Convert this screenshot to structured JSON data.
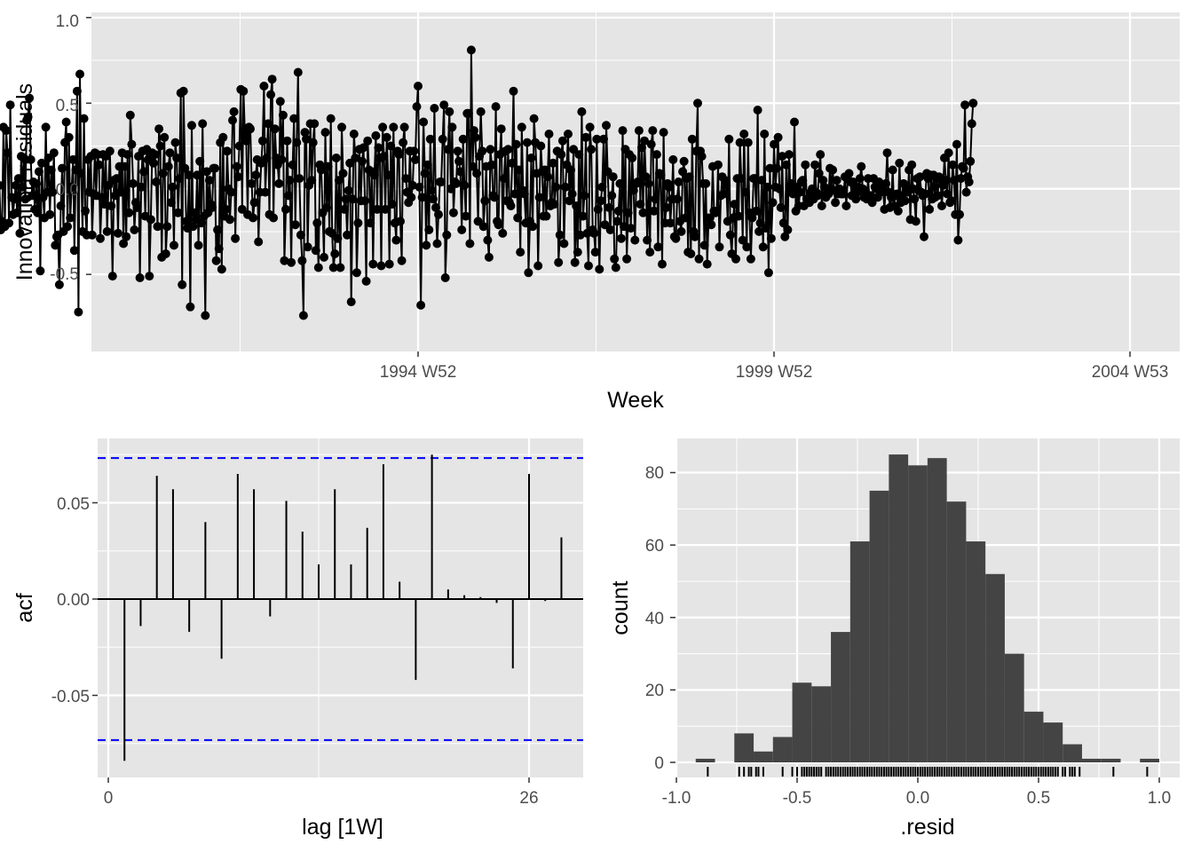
{
  "colors": {
    "panel_bg": "#e5e5e5",
    "grid": "#ffffff",
    "line": "#000000",
    "bar": "#444444",
    "ci": "#0000ff",
    "tick_text": "#4d4d4d"
  },
  "chart_data": [
    {
      "type": "line",
      "xlabel": "Week",
      "ylabel": "Innovation residuals",
      "x_start_week": "1991 W07",
      "x_end_week": "2004 W53",
      "x_ticks": [
        "1994 W52",
        "1999 W52",
        "2004 W53"
      ],
      "y_ticks": [
        "-0.5",
        "0.0",
        "0.5",
        "1.0"
      ],
      "ylim": [
        -0.95,
        1.03
      ],
      "markers": "points",
      "n_points": 673,
      "values": [
        0.02,
        -0.24,
        -0.19,
        0.36,
        -0.22,
        0.34,
        0.21,
        -0.2,
        0.49,
        -0.05,
        -0.15,
        -0.06,
        0.02,
        -0.14,
        0.06,
        -0.26,
        0.19,
        0.01,
        0.18,
        -0.06,
        0.4,
        0.42,
        0.53,
        0.17,
        -0.04,
        0.04,
        -0.12,
        0.03,
        -0.14,
        0.1,
        -0.48,
        0.15,
        -0.05,
        -0.17,
        0.36,
        -0.02,
        0.18,
        -0.15,
        0.11,
        -0.02,
        0.21,
        -0.33,
        -0.28,
        -0.27,
        -0.56,
        -0.1,
        0.12,
        -0.25,
        0.27,
        0.39,
        -0.22,
        0.3,
        -0.17,
        0.01,
        0.17,
        -0.36,
        0.11,
        0.57,
        -0.72,
        0.67,
        0.09,
        -0.25,
        0.41,
        -0.13,
        -0.27,
        0.17,
        -0.02,
        0.19,
        -0.27,
        -0.03,
        0.21,
        -0.04,
        0.2,
        0.14,
        -0.29,
        -0.05,
        0.2,
        -0.09,
        0.19,
        -0.25,
        0.02,
        0.22,
        -0.1,
        -0.51,
        0.05,
        -0.04,
        0.06,
        -0.26,
        0.13,
        -0.02,
        0.21,
        -0.32,
        0.13,
        -0.28,
        0.2,
        -0.14,
        0.43,
        0.26,
        0.03,
        -0.24,
        -0.08,
        -0.11,
        0.19,
        -0.52,
        0.01,
        0.22,
        0.1,
        -0.16,
        0.23,
        0.17,
        -0.51,
        -0.18,
        0.21,
        0.15,
        0.2,
        0.04,
        -0.22,
        0.35,
        0.25,
        -0.4,
        0.09,
        0.3,
        -0.38,
        -0.22,
        0.13,
        0.21,
        -0.08,
        0.01,
        -0.33,
        0.27,
        0.18,
        -0.14,
        0.06,
        0.56,
        -0.56,
        0.57,
        0.12,
        -0.19,
        -0.23,
        0.08,
        -0.69,
        0.37,
        -0.22,
        -0.14,
        -0.18,
        0.08,
        -0.33,
        0.16,
        -0.2,
        0.38,
        -0.16,
        -0.74,
        0.1,
        -0.14,
        0.05,
        -0.09,
        -0.11,
        0.12,
        0.12,
        -0.42,
        -0.24,
        -0.35,
        0.27,
        -0.47,
        0.3,
        -0.16,
        -0.12,
        0.22,
        0.0,
        -0.18,
        -0.02,
        0.4,
        0.45,
        -0.29,
        0.13,
        0.07,
        0.25,
        0.58,
        -0.12,
        0.57,
        0.32,
        0.28,
        -0.15,
        0.36,
        0.35,
        0.03,
        -0.17,
        -0.08,
        0.08,
        0.17,
        -0.31,
        -0.02,
        0.15,
        0.28,
        0.6,
        -0.02,
        0.18,
        0.38,
        -0.15,
        0.55,
        0.64,
        -0.17,
        0.35,
        0.18,
        0.14,
        0.03,
        0.51,
        0.17,
        0.43,
        -0.42,
        -0.12,
        0.28,
        -0.04,
        0.05,
        -0.43,
        0.14,
        0.41,
        -0.21,
        0.27,
        0.68,
        0.06,
        -0.27,
        -0.42,
        -0.74,
        0.33,
        0.29,
        -0.34,
        0.02,
        0.38,
        0.05,
        0.27,
        0.38,
        -0.36,
        -0.2,
        -0.46,
        0.14,
        0.11,
        -0.14,
        -0.4,
        0.33,
        -0.11,
        0.13,
        -0.25,
        0.41,
        -0.26,
        -0.46,
        -0.38,
        0.18,
        -0.29,
        0.05,
        -0.46,
        0.36,
        0.09,
        -0.12,
        -0.06,
        -0.27,
        -0.01,
        0.15,
        -0.66,
        -0.06,
        0.32,
        0.18,
        -0.49,
        -0.2,
        0.23,
        -0.07,
        0.16,
        0.24,
        -0.07,
        -0.54,
        0.28,
        0.11,
        -0.2,
        0.1,
        -0.44,
        0.08,
        0.31,
        -0.12,
        0.24,
        0.18,
        -0.45,
        0.36,
        0.19,
        -0.12,
        0.3,
        0.08,
        -0.44,
        0.25,
        -0.09,
        0.36,
        -0.2,
        -0.3,
        0.22,
        0.2,
        -0.19,
        -0.42,
        0.27,
        0.36,
        0.06,
        -0.02,
        -0.08,
        0.22,
        -0.05,
        0.02,
        0.22,
        0.17,
        0.48,
        0.6,
        0.01,
        -0.68,
        -0.05,
        0.39,
        0.09,
        -0.33,
        0.14,
        -0.24,
        0.29,
        -0.01,
        -0.06,
        0.47,
        -0.11,
        -0.32,
        -0.15,
        0.04,
        0.04,
        0.29,
        0.49,
        -0.52,
        -0.27,
        0.23,
        0.45,
        0.0,
        0.36,
        -0.14,
        0.04,
        0.03,
        0.22,
        0.16,
        0.1,
        -0.24,
        0.29,
        0.02,
        -0.16,
        0.44,
        0.44,
        -0.32,
        0.81,
        0.13,
        0.34,
        0.3,
        0.09,
        -0.19,
        0.19,
        0.45,
        0.22,
        -0.22,
        -0.07,
        0.13,
        -0.3,
        -0.4,
        0.23,
        0.14,
        -0.04,
        -0.05,
        0.48,
        -0.19,
        -0.21,
        0.2,
        0.35,
        -0.26,
        0.06,
        0.22,
        -0.07,
        0.23,
        -0.08,
        -0.1,
        0.15,
        0.57,
        -0.03,
        0.26,
        -0.17,
        0.11,
        -0.37,
        0.36,
        -0.01,
        -0.03,
        -0.2,
        0.27,
        -0.49,
        -0.19,
        0.18,
        -0.22,
        0.41,
        0.27,
        0.09,
        -0.45,
        -0.05,
        0.25,
        0.1,
        -0.16,
        0.11,
        -0.16,
        0.07,
        0.32,
        -0.1,
        -0.08,
        0.15,
        -0.09,
        0.01,
        0.22,
        -0.43,
        -0.27,
        0.2,
        0.28,
        -0.32,
        0.01,
        0.14,
        0.32,
        -0.07,
        0.11,
        -0.03,
        0.23,
        -0.43,
        -0.1,
        -0.37,
        0.2,
        -0.27,
        0.45,
        -0.16,
        -0.04,
        0.3,
        -0.26,
        -0.45,
        0.36,
        0.23,
        -0.24,
        -0.26,
        -0.37,
        0.29,
        -0.12,
        -0.47,
        -0.07,
        0.01,
        0.29,
        -0.21,
        0.37,
        0.1,
        -0.11,
        -0.24,
        -0.04,
        0.07,
        -0.41,
        -0.46,
        -0.19,
        -0.13,
        0.03,
        -0.29,
        0.34,
        -0.22,
        0.23,
        -0.41,
        -0.14,
        0.2,
        -0.23,
        0.18,
        -0.01,
        -0.3,
        0.03,
        0.04,
        0.34,
        -0.09,
        0.24,
        -0.14,
        0.28,
        0.07,
        -0.3,
        0.03,
        -0.37,
        0.26,
        0.34,
        -0.13,
        -0.06,
        0.2,
        -0.34,
        0.09,
        0.08,
        -0.44,
        0.33,
        -0.2,
        -0.11,
        0.03,
        0.01,
        -0.2,
        -0.06,
        0.17,
        -0.28,
        -0.29,
        -0.06,
        0.04,
        -0.19,
        -0.25,
        0.1,
        0.16,
        -0.17,
        0.06,
        -0.37,
        0.07,
        -0.38,
        0.29,
        -0.25,
        -0.28,
        0.22,
        0.5,
        -0.41,
        0.22,
        0.19,
        0.03,
        -0.33,
        0.03,
        -0.44,
        -0.17,
        -0.17,
        -0.21,
        0.13,
        -0.13,
        -0.14,
        -0.13,
        0.14,
        -0.34,
        -0.04,
        0.07,
        -0.03,
        0.05,
        0.02,
        -0.19,
        0.29,
        -0.27,
        -0.38,
        -0.17,
        -0.09,
        -0.41,
        0.06,
        -0.16,
        0.27,
        0.06,
        -0.3,
        0.32,
        -0.02,
        -0.34,
        0.27,
        -0.14,
        -0.41,
        -0.17,
        0.06,
        0.06,
        -0.13,
        0.46,
        -0.25,
        -0.2,
        0.05,
        -0.34,
        0.32,
        -0.23,
        0.01,
        -0.49,
        0.12,
        -0.29,
        -0.08,
        0.26,
        0.01,
        0.12,
        0.3,
        0.0,
        -0.11,
        0.19,
        -0.2,
        -0.28,
        0.14,
        -0.24,
        0.2,
        -0.01,
        0.03,
        -0.03,
        0.39,
        -0.13,
        0.01,
        -0.1,
        -0.02,
        0.04,
        0.05,
        -0.1,
        0.14,
        -0.06,
        -0.07,
        -0.08,
        -0.02,
        0.0,
        -0.06,
        0.14,
        -0.02,
        -0.04,
        0.09,
        0.2,
        -0.1,
        0.05,
        0.01,
        -0.05,
        -0.03,
        -0.03,
        0.12,
        0.0,
        0.11,
        -0.01,
        -0.08,
        0.05,
        -0.03,
        0.0,
        -0.03,
        -0.03,
        -0.03,
        0.07,
        -0.1,
        0.06,
        0.09,
        0.04,
        -0.04,
        0.04,
        -0.03,
        -0.06,
        -0.02,
        0.01,
        0.06,
        0.13,
        0.0,
        -0.05,
        -0.02,
        -0.06,
        0.06,
        -0.06,
        -0.04,
        -0.08,
        0.06,
        0.01,
        0.0,
        -0.05,
        0.04,
        -0.02,
        0.0,
        0.0,
        -0.12,
        0.03,
        0.21,
        -0.02,
        -0.11,
        -0.05,
        0.11,
        -0.1,
        -0.04,
        -0.03,
        -0.13,
        0.15,
        -0.08,
        -0.04,
        0.03,
        -0.07,
        0.0,
        -0.02,
        0.11,
        -0.18,
        0.14,
        0.0,
        -0.06,
        -0.19,
        0.06,
        -0.01,
        0.07,
        -0.02,
        -0.04,
        -0.28,
        -0.03,
        0.09,
        0.06,
        -0.12,
        0.08,
        -0.06,
        0.08,
        -0.05,
        0.06,
        -0.04,
        0.07,
        0.06,
        -0.1,
        0.02,
        0.18,
        0.05,
        -0.03,
        0.21,
        -0.08,
        -0.07,
        0.14,
        0.05,
        -0.15,
        0.26,
        -0.3,
        -0.15,
        0.06,
        0.13,
        0.12,
        0.49,
        -0.02,
        0.07,
        0.04,
        0.16,
        0.38,
        0.5
      ]
    },
    {
      "type": "bar",
      "xlabel": "lag [1W]",
      "ylabel": "acf",
      "x_ticks": [
        "0",
        "26"
      ],
      "y_ticks": [
        "-0.05",
        "0.00",
        "0.05"
      ],
      "xlim": [
        -0.2,
        29.5
      ],
      "ylim": [
        -0.09,
        0.082
      ],
      "ci": 0.0732,
      "lags": [
        1,
        2,
        3,
        4,
        5,
        6,
        7,
        8,
        9,
        10,
        11,
        12,
        13,
        14,
        15,
        16,
        17,
        18,
        19,
        20,
        21,
        22,
        23,
        24,
        25,
        26,
        27,
        28
      ],
      "values": [
        -0.084,
        -0.014,
        0.064,
        0.057,
        -0.017,
        0.04,
        -0.031,
        0.065,
        0.057,
        -0.009,
        0.051,
        0.035,
        0.018,
        0.057,
        0.018,
        0.037,
        0.07,
        0.009,
        -0.042,
        0.075,
        0.005,
        0.002,
        0.001,
        -0.002,
        -0.036,
        0.065,
        -0.001,
        0.032
      ]
    },
    {
      "type": "bar",
      "subtype": "histogram",
      "xlabel": ".resid",
      "ylabel": "count",
      "x_ticks": [
        "-1.0",
        "-0.5",
        "0.0",
        "0.5",
        "1.0"
      ],
      "y_ticks": [
        "0",
        "20",
        "40",
        "60",
        "80"
      ],
      "xlim": [
        -1.02,
        1.02
      ],
      "ylim": [
        -4,
        89
      ],
      "bin_width": 0.08,
      "bin_starts": [
        -0.92,
        -0.84,
        -0.76,
        -0.68,
        -0.6,
        -0.52,
        -0.44,
        -0.36,
        -0.28,
        -0.2,
        -0.12,
        -0.04,
        0.04,
        0.12,
        0.2,
        0.28,
        0.36,
        0.44,
        0.52,
        0.6,
        0.68,
        0.76,
        0.84,
        0.92
      ],
      "values": [
        1,
        0,
        8,
        3,
        7,
        22,
        21,
        36,
        61,
        75,
        85,
        82,
        84,
        72,
        61,
        52,
        30,
        14,
        11,
        5,
        1,
        1,
        0,
        1
      ],
      "rug": [
        -0.87,
        -0.74,
        -0.72,
        -0.7,
        -0.69,
        -0.67,
        -0.66,
        -0.64,
        -0.56,
        -0.52,
        -0.5,
        -0.48,
        -0.47,
        -0.46,
        -0.45,
        -0.44,
        -0.43,
        -0.42,
        -0.41,
        -0.4,
        -0.38,
        -0.37,
        -0.36,
        -0.35,
        -0.34,
        -0.33,
        -0.32,
        -0.31,
        -0.3,
        -0.29,
        -0.28,
        -0.27,
        -0.26,
        -0.25,
        -0.24,
        -0.23,
        -0.22,
        -0.21,
        -0.2,
        -0.19,
        -0.18,
        -0.17,
        -0.16,
        -0.15,
        -0.14,
        -0.13,
        -0.12,
        -0.11,
        -0.1,
        -0.09,
        -0.08,
        -0.07,
        -0.06,
        -0.05,
        -0.04,
        -0.03,
        -0.02,
        -0.01,
        0.0,
        0.01,
        0.02,
        0.03,
        0.04,
        0.05,
        0.06,
        0.07,
        0.08,
        0.09,
        0.1,
        0.11,
        0.12,
        0.13,
        0.14,
        0.15,
        0.16,
        0.17,
        0.18,
        0.19,
        0.2,
        0.21,
        0.22,
        0.23,
        0.24,
        0.25,
        0.26,
        0.27,
        0.28,
        0.29,
        0.3,
        0.31,
        0.32,
        0.33,
        0.34,
        0.35,
        0.36,
        0.37,
        0.38,
        0.39,
        0.4,
        0.41,
        0.42,
        0.43,
        0.44,
        0.45,
        0.46,
        0.47,
        0.48,
        0.49,
        0.5,
        0.51,
        0.52,
        0.53,
        0.54,
        0.55,
        0.56,
        0.57,
        0.58,
        0.6,
        0.61,
        0.63,
        0.64,
        0.65,
        0.67,
        0.81,
        0.95
      ]
    }
  ]
}
